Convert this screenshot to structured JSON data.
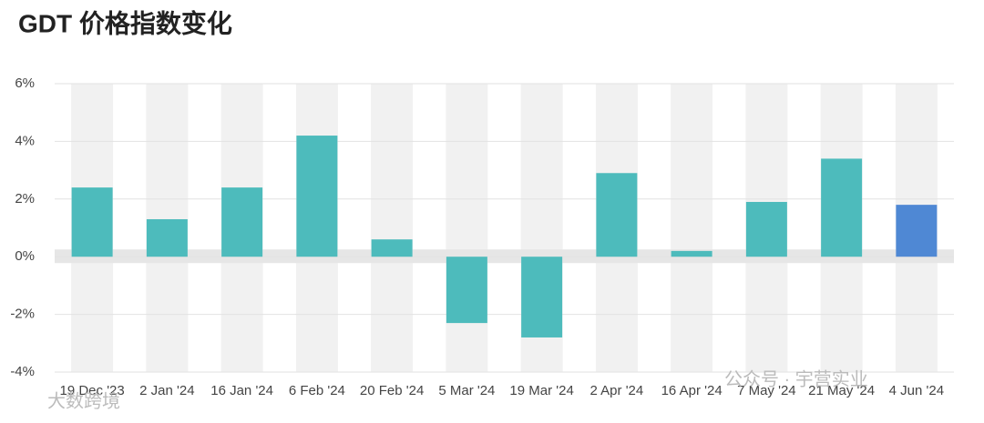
{
  "chart_data": {
    "type": "bar",
    "title": "GDT 价格指数变化",
    "categories": [
      "19 Dec '23",
      "2 Jan '24",
      "16 Jan '24",
      "6 Feb '24",
      "20 Feb '24",
      "5 Mar '24",
      "19 Mar '24",
      "2 Apr '24",
      "16 Apr '24",
      "7 May '24",
      "21 May '24",
      "4 Jun '24"
    ],
    "values": [
      2.4,
      1.3,
      2.4,
      4.2,
      0.6,
      -2.3,
      -2.8,
      2.9,
      0.2,
      1.9,
      3.4,
      1.8
    ],
    "colors": [
      "#4dbbbc",
      "#4dbbbc",
      "#4dbbbc",
      "#4dbbbc",
      "#4dbbbc",
      "#4dbbbc",
      "#4dbbbc",
      "#4dbbbc",
      "#4dbbbc",
      "#4dbbbc",
      "#4dbbbc",
      "#4f88d4"
    ],
    "ylim": [
      -4,
      6
    ],
    "yticks": [
      {
        "value": -4,
        "label": "-4%"
      },
      {
        "value": -2,
        "label": "-2%"
      },
      {
        "value": 0,
        "label": "0%"
      },
      {
        "value": 2,
        "label": "2%"
      },
      {
        "value": 4,
        "label": "4%"
      },
      {
        "value": 6,
        "label": "6%"
      }
    ],
    "watermarks": [
      "公众号 · 宇营实业",
      "大数跨境"
    ]
  }
}
